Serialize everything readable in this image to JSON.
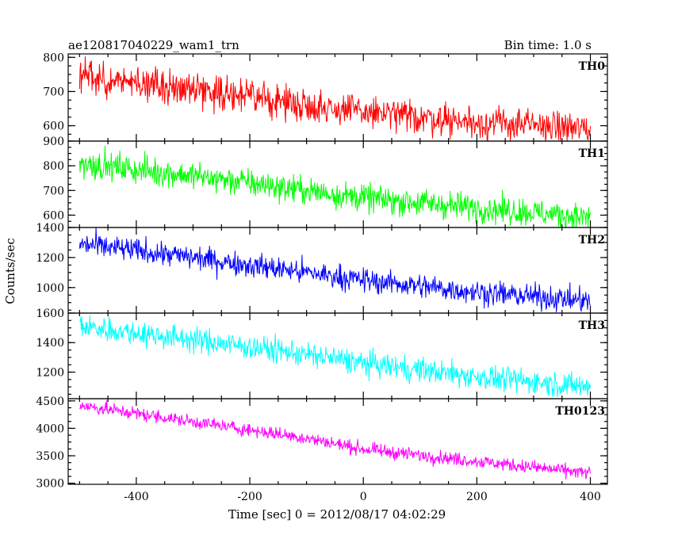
{
  "header": {
    "title": "ae120817040229_wam1_trn",
    "bin_time": "Bin time: 1.0 s"
  },
  "chart_data": {
    "type": "line",
    "title": "ae120817040229_wam1_trn",
    "annotation": "Bin time: 1.0 s",
    "xlabel": "Time [sec] 0 = 2012/08/17 04:02:29",
    "ylabel": "Counts/sec",
    "xlim": [
      -520,
      430
    ],
    "xticks": [
      -400,
      -200,
      0,
      200,
      400
    ],
    "x_data_range": [
      -500,
      400
    ],
    "bin_seconds": 1.0,
    "grid": false,
    "legend": "none",
    "panels": [
      {
        "name": "TH0",
        "color": "#ff0000",
        "ylim": [
          555,
          810
        ],
        "yticks": [
          600,
          700,
          800
        ],
        "trend": [
          {
            "x": -500,
            "y": 740
          },
          {
            "x": -300,
            "y": 710
          },
          {
            "x": -100,
            "y": 660
          },
          {
            "x": 0,
            "y": 640
          },
          {
            "x": 200,
            "y": 610
          },
          {
            "x": 400,
            "y": 590
          }
        ],
        "noise": 24
      },
      {
        "name": "TH1",
        "color": "#00ff00",
        "ylim": [
          550,
          900
        ],
        "yticks": [
          600,
          700,
          800,
          900
        ],
        "trend": [
          {
            "x": -500,
            "y": 810
          },
          {
            "x": -300,
            "y": 760
          },
          {
            "x": -100,
            "y": 700
          },
          {
            "x": 0,
            "y": 670
          },
          {
            "x": 200,
            "y": 630
          },
          {
            "x": 400,
            "y": 590
          }
        ],
        "noise": 28
      },
      {
        "name": "TH2",
        "color": "#0000ff",
        "ylim": [
          830,
          1400
        ],
        "yticks": [
          1000,
          1200,
          1400
        ],
        "trend": [
          {
            "x": -500,
            "y": 1290
          },
          {
            "x": -300,
            "y": 1200
          },
          {
            "x": -100,
            "y": 1100
          },
          {
            "x": 0,
            "y": 1050
          },
          {
            "x": 200,
            "y": 970
          },
          {
            "x": 400,
            "y": 910
          }
        ],
        "noise": 40
      },
      {
        "name": "TH3",
        "color": "#00ffff",
        "ylim": [
          1020,
          1600
        ],
        "yticks": [
          1200,
          1400,
          1600
        ],
        "trend": [
          {
            "x": -500,
            "y": 1510
          },
          {
            "x": -300,
            "y": 1420
          },
          {
            "x": -100,
            "y": 1320
          },
          {
            "x": 0,
            "y": 1260
          },
          {
            "x": 200,
            "y": 1170
          },
          {
            "x": 400,
            "y": 1100
          }
        ],
        "noise": 42
      },
      {
        "name": "TH0123",
        "color": "#ff00ff",
        "ylim": [
          2980,
          4540
        ],
        "yticks": [
          3000,
          3500,
          4000,
          4500
        ],
        "trend": [
          {
            "x": -500,
            "y": 4420
          },
          {
            "x": -300,
            "y": 4120
          },
          {
            "x": -100,
            "y": 3820
          },
          {
            "x": 0,
            "y": 3620
          },
          {
            "x": 200,
            "y": 3400
          },
          {
            "x": 400,
            "y": 3180
          }
        ],
        "noise": 60
      }
    ]
  }
}
